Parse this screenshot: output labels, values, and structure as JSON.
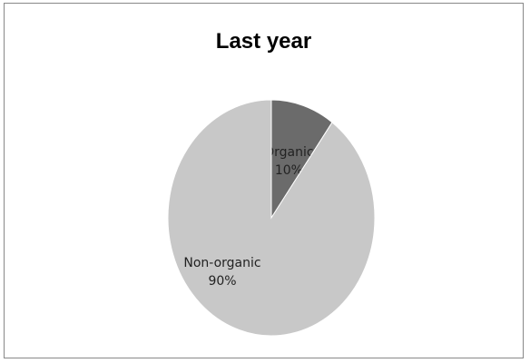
{
  "chart_data": {
    "type": "pie",
    "title": "Last year",
    "slices": [
      {
        "label": "Organic",
        "value_label": "10%",
        "value": 10,
        "color": "#6b6b6b"
      },
      {
        "label": "Non-organic",
        "value_label": "90%",
        "value": 90,
        "color": "#c8c8c8"
      }
    ],
    "start_angle_deg": 0,
    "legend": false,
    "data_labels": "inside"
  }
}
